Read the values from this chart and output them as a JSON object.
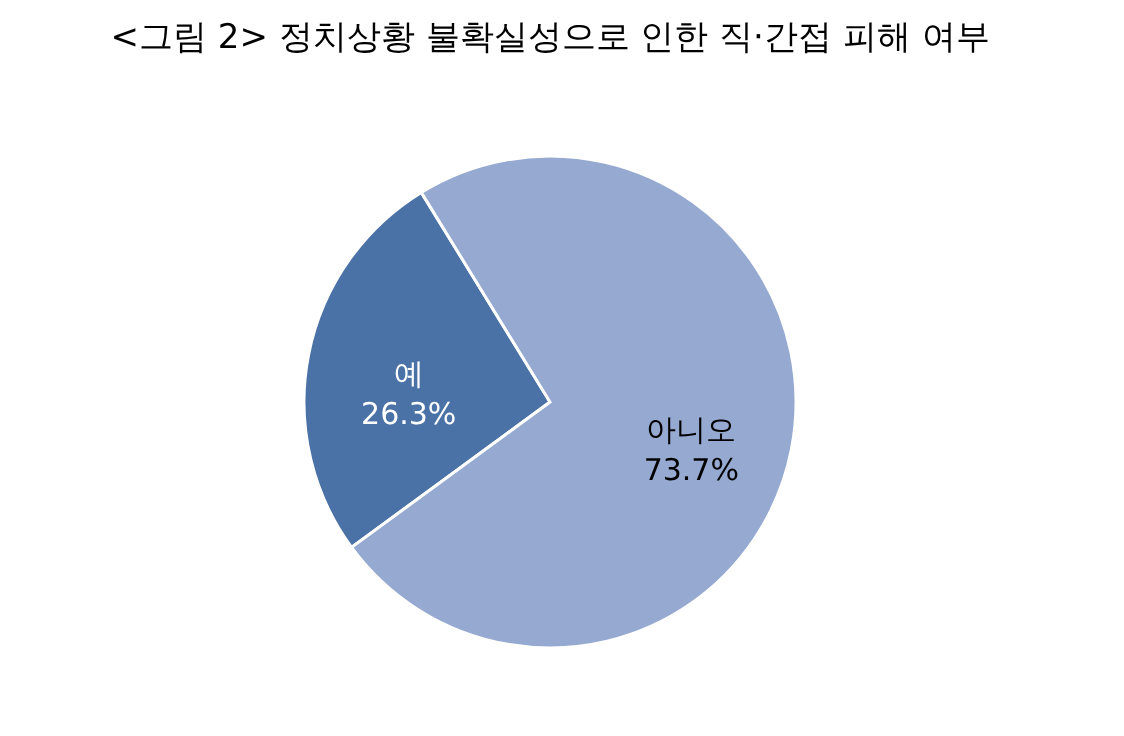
{
  "chart_data": {
    "type": "pie",
    "title": "<그림 2> 정치상황 불확실성으로 인한 직·간접 피해 여부",
    "categories": [
      "예",
      "아니오"
    ],
    "values": [
      26.3,
      73.7
    ],
    "value_labels": [
      "26.3%",
      "73.7%"
    ],
    "colors": [
      "#4a72a6",
      "#95a9d1"
    ],
    "legend": false
  }
}
